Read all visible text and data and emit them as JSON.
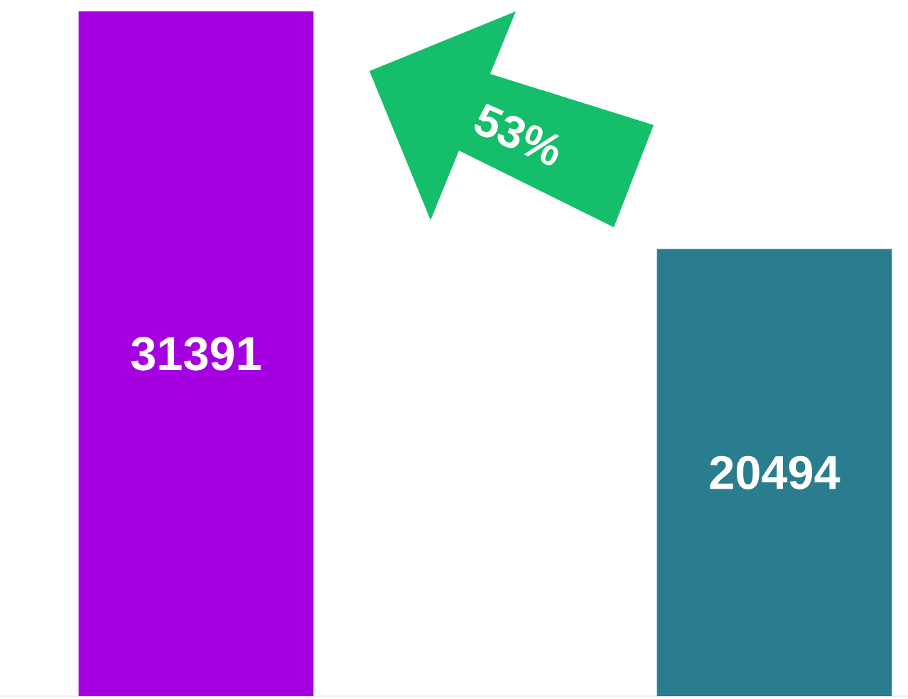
{
  "chart_data": {
    "type": "bar",
    "categories": [
      null,
      null
    ],
    "values": [
      31391,
      20494
    ],
    "colors": [
      "#a500e0",
      "#2a7d8f"
    ],
    "data_labels": true,
    "annotations": [
      "53%"
    ]
  }
}
